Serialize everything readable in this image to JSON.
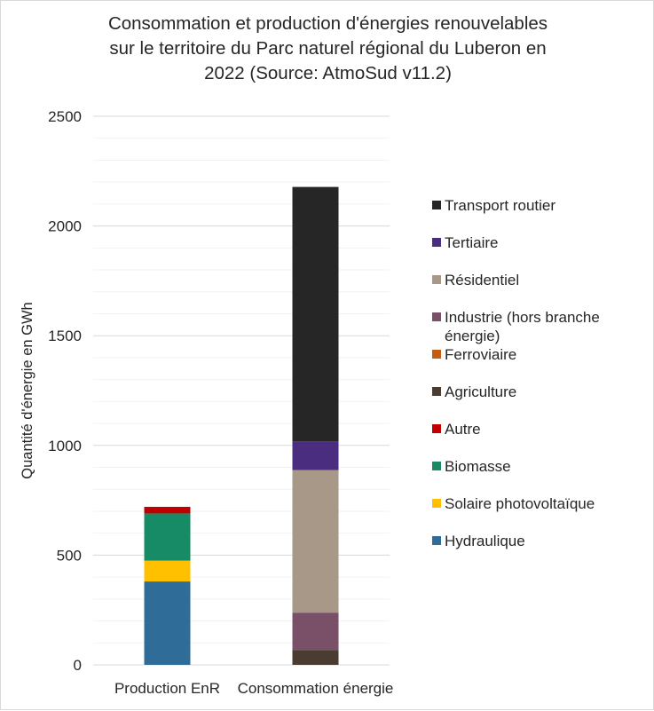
{
  "chart_data": {
    "type": "bar",
    "stacked": true,
    "title": "Consommation et production d'énergies renouvelables\nsur le territoire du Parc naturel régional du Luberon en\n2022 (Source: AtmoSud v11.2)",
    "xlabel": "",
    "ylabel": "Quantité d'énergie en GWh",
    "ylim": [
      0,
      2500
    ],
    "yticks": [
      0,
      500,
      1000,
      1500,
      2000,
      2500
    ],
    "grid": "horizontal",
    "legend_position": "right",
    "categories": [
      "Production EnR",
      "Consommation énergie"
    ],
    "series": [
      {
        "name": "Hydraulique",
        "color": "#2f6d98",
        "values": [
          380,
          0
        ]
      },
      {
        "name": "Solaire photovoltaïque",
        "color": "#ffc000",
        "values": [
          95,
          0
        ]
      },
      {
        "name": "Biomasse",
        "color": "#178b66",
        "values": [
          215,
          0
        ]
      },
      {
        "name": "Autre",
        "color": "#c00000",
        "values": [
          30,
          0
        ]
      },
      {
        "name": "Agriculture",
        "color": "#4a3c31",
        "values": [
          0,
          68
        ]
      },
      {
        "name": "Ferroviaire",
        "color": "#c55a11",
        "values": [
          0,
          0
        ]
      },
      {
        "name": "Industrie (hors branche énergie)",
        "color": "#7a5068",
        "values": [
          0,
          170
        ]
      },
      {
        "name": "Résidentiel",
        "color": "#a89887",
        "values": [
          0,
          650
        ]
      },
      {
        "name": "Tertiaire",
        "color": "#4b2d7f",
        "values": [
          0,
          130
        ]
      },
      {
        "name": "Transport routier",
        "color": "#262626",
        "values": [
          0,
          1160
        ]
      }
    ],
    "legend_order": [
      "Transport routier",
      "Tertiaire",
      "Résidentiel",
      "Industrie (hors branche énergie)",
      "Ferroviaire",
      "Agriculture",
      "Autre",
      "Biomasse",
      "Solaire photovoltaïque",
      "Hydraulique"
    ],
    "legend_display": {
      "Industrie (hors branche énergie)": [
        "Industrie (hors branche",
        "énergie)"
      ]
    }
  }
}
